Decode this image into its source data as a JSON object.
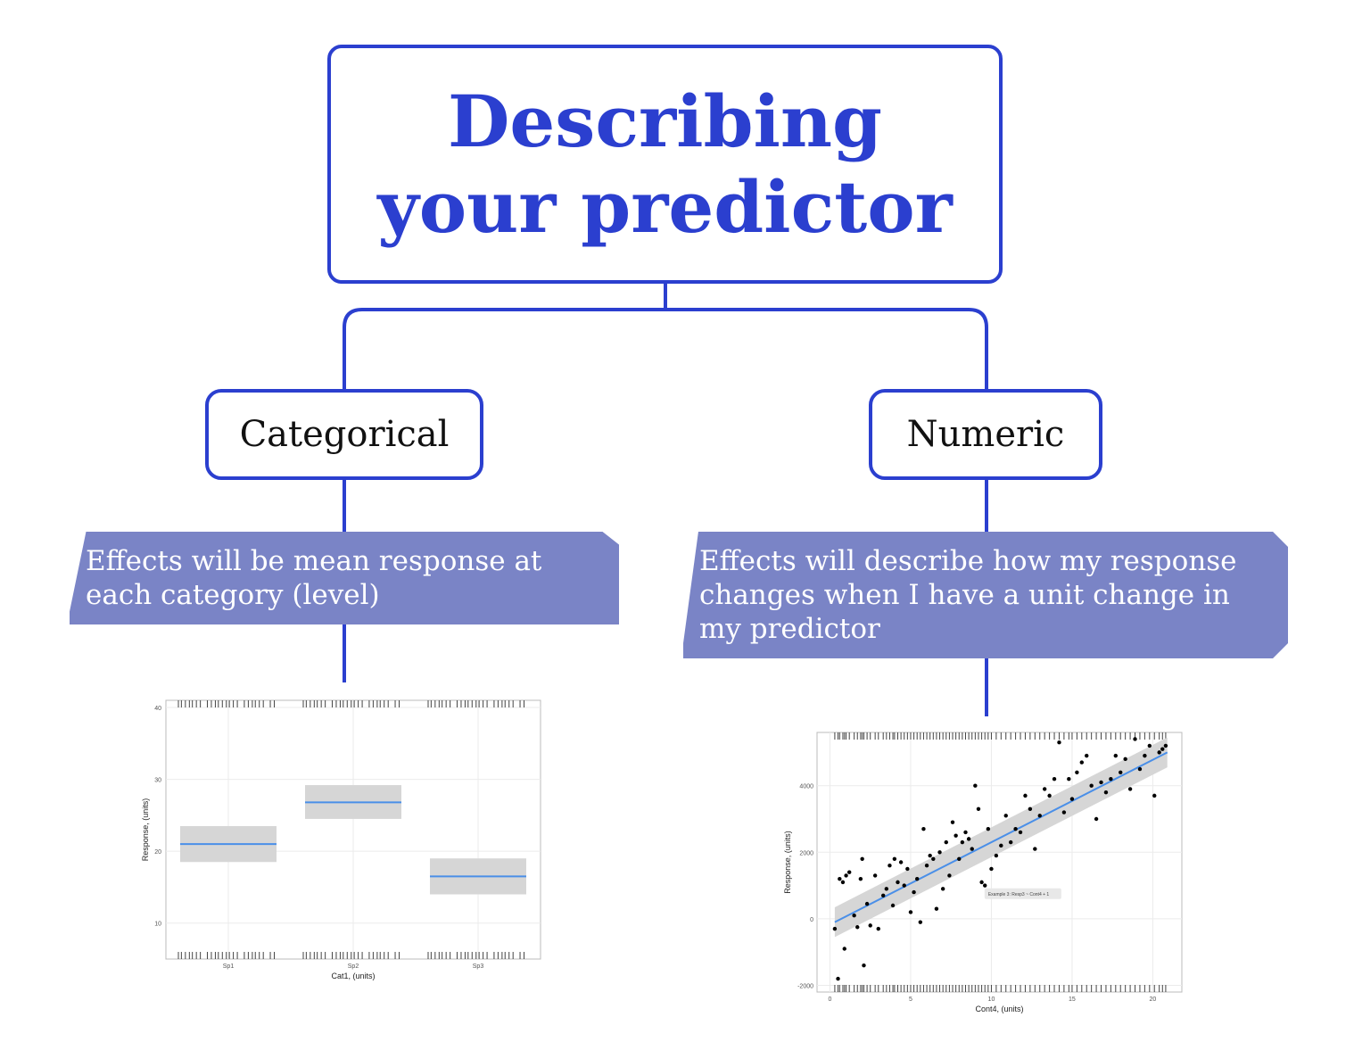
{
  "title": {
    "line1": "Describing",
    "line2": "your predictor"
  },
  "branches": {
    "categorical": {
      "label": "Categorical",
      "description": "Effects will be mean response at each category (level)"
    },
    "numeric": {
      "label": "Numeric",
      "description": "Effects will describe how my response changes when I have a unit change in my predictor"
    }
  },
  "colors": {
    "accent": "#2b3fcf",
    "callout": "#7a84c6",
    "fit_line": "#4a8fe8",
    "ci_band": "#d6d6d6"
  },
  "chart_data": [
    {
      "type": "bar",
      "xlabel": "Cat1, (units)",
      "ylabel": "Response, (units)",
      "categories": [
        "Sp1",
        "Sp2",
        "Sp3"
      ],
      "values": [
        21,
        26.8,
        16.5
      ],
      "ci_low": [
        18.5,
        24.5,
        14
      ],
      "ci_high": [
        23.5,
        29.2,
        19
      ],
      "ylim": [
        5,
        41
      ],
      "yticks": [
        10,
        20,
        30,
        40
      ],
      "grid": true,
      "rug": true
    },
    {
      "type": "scatter",
      "xlabel": "Cont4, (units)",
      "ylabel": "Response, (units)",
      "annotation": "Example 3: Resp3 ~ Cont4 + 1",
      "xlim": [
        -0.8,
        21.8
      ],
      "ylim": [
        -2200,
        5600
      ],
      "xticks": [
        0,
        5,
        10,
        15,
        20
      ],
      "yticks": [
        -2000,
        0,
        2000,
        4000
      ],
      "grid": true,
      "rug": true,
      "fit": {
        "x": [
          0.3,
          20.9
        ],
        "y": [
          -100,
          5000
        ],
        "ci": 280
      },
      "points": [
        [
          0.3,
          -300
        ],
        [
          0.5,
          -1800
        ],
        [
          0.6,
          1200
        ],
        [
          0.8,
          1100
        ],
        [
          0.9,
          -900
        ],
        [
          1.0,
          1300
        ],
        [
          1.2,
          1400
        ],
        [
          1.5,
          100
        ],
        [
          1.7,
          -250
        ],
        [
          1.9,
          1200
        ],
        [
          2.0,
          1800
        ],
        [
          2.1,
          -1400
        ],
        [
          2.3,
          450
        ],
        [
          2.5,
          -200
        ],
        [
          2.8,
          1300
        ],
        [
          3.0,
          -300
        ],
        [
          3.3,
          700
        ],
        [
          3.5,
          900
        ],
        [
          3.7,
          1600
        ],
        [
          3.9,
          400
        ],
        [
          4.0,
          1800
        ],
        [
          4.2,
          1100
        ],
        [
          4.4,
          1700
        ],
        [
          4.6,
          1000
        ],
        [
          4.8,
          1500
        ],
        [
          5.0,
          200
        ],
        [
          5.2,
          800
        ],
        [
          5.4,
          1200
        ],
        [
          5.6,
          -100
        ],
        [
          5.8,
          2700
        ],
        [
          6.0,
          1600
        ],
        [
          6.2,
          1900
        ],
        [
          6.4,
          1800
        ],
        [
          6.6,
          300
        ],
        [
          6.8,
          2000
        ],
        [
          7.0,
          900
        ],
        [
          7.2,
          2300
        ],
        [
          7.4,
          1300
        ],
        [
          7.6,
          2900
        ],
        [
          7.8,
          2500
        ],
        [
          8.0,
          1800
        ],
        [
          8.2,
          2300
        ],
        [
          8.4,
          2600
        ],
        [
          8.6,
          2400
        ],
        [
          8.8,
          2100
        ],
        [
          9.0,
          4000
        ],
        [
          9.2,
          3300
        ],
        [
          9.4,
          1100
        ],
        [
          9.6,
          1000
        ],
        [
          9.8,
          2700
        ],
        [
          10.0,
          1500
        ],
        [
          10.3,
          1900
        ],
        [
          10.6,
          2200
        ],
        [
          10.9,
          3100
        ],
        [
          11.2,
          2300
        ],
        [
          11.5,
          2700
        ],
        [
          11.8,
          2600
        ],
        [
          12.1,
          3700
        ],
        [
          12.4,
          3300
        ],
        [
          12.7,
          2100
        ],
        [
          13.0,
          3100
        ],
        [
          13.3,
          3900
        ],
        [
          13.6,
          3700
        ],
        [
          13.9,
          4200
        ],
        [
          14.2,
          5300
        ],
        [
          14.5,
          3200
        ],
        [
          14.8,
          4200
        ],
        [
          15.0,
          3600
        ],
        [
          15.3,
          4400
        ],
        [
          15.6,
          4700
        ],
        [
          15.9,
          4900
        ],
        [
          16.2,
          4000
        ],
        [
          16.5,
          3000
        ],
        [
          16.8,
          4100
        ],
        [
          17.1,
          3800
        ],
        [
          17.4,
          4200
        ],
        [
          17.7,
          4900
        ],
        [
          18.0,
          4400
        ],
        [
          18.3,
          4800
        ],
        [
          18.6,
          3900
        ],
        [
          18.9,
          5400
        ],
        [
          19.2,
          4500
        ],
        [
          19.5,
          4900
        ],
        [
          19.8,
          5200
        ],
        [
          20.1,
          3700
        ],
        [
          20.4,
          5000
        ],
        [
          20.6,
          5100
        ],
        [
          20.8,
          5200
        ]
      ]
    }
  ]
}
